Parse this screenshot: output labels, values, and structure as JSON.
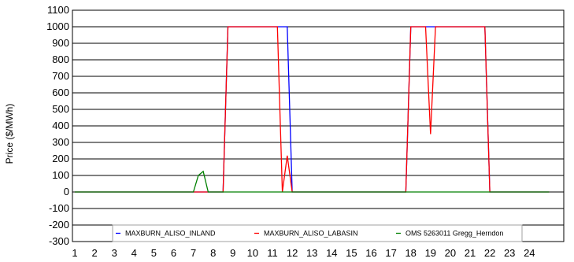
{
  "chart_data": {
    "type": "line",
    "ylabel": "Price ($/MWh)",
    "xlabel": "",
    "ylim": [
      -300,
      1100
    ],
    "yticks": [
      1100,
      1000,
      900,
      800,
      700,
      600,
      500,
      400,
      300,
      200,
      100,
      0,
      -100,
      -200,
      -300
    ],
    "xlim": [
      0.9,
      25
    ],
    "xticks": [
      1,
      2,
      3,
      4,
      5,
      6,
      7,
      8,
      9,
      10,
      11,
      12,
      13,
      14,
      15,
      16,
      17,
      18,
      19,
      20,
      21,
      22,
      23,
      24
    ],
    "grid": "horizontal",
    "legend_position": "bottom-inside",
    "series": [
      {
        "name": "MAXBURN_ALISO_INLAND",
        "color": "#0000ff",
        "points": [
          [
            1,
            0
          ],
          [
            8.5,
            0
          ],
          [
            8.75,
            1000
          ],
          [
            11.5,
            1000
          ],
          [
            11.75,
            1000
          ],
          [
            12,
            0
          ],
          [
            17.75,
            0
          ],
          [
            18,
            1000
          ],
          [
            21.75,
            1000
          ],
          [
            22,
            0
          ],
          [
            25,
            0
          ]
        ]
      },
      {
        "name": "MAXBURN_ALISO_LABASIN",
        "color": "#ff0000",
        "points": [
          [
            1,
            0
          ],
          [
            8.5,
            0
          ],
          [
            8.75,
            1000
          ],
          [
            11.25,
            1000
          ],
          [
            11.5,
            0
          ],
          [
            11.75,
            220
          ],
          [
            12,
            0
          ],
          [
            17.75,
            0
          ],
          [
            18,
            1000
          ],
          [
            18.75,
            1000
          ],
          [
            19,
            350
          ],
          [
            19.25,
            1000
          ],
          [
            21.75,
            1000
          ],
          [
            22,
            0
          ],
          [
            25,
            0
          ]
        ]
      },
      {
        "name": "OMS 5263011 Gregg_Herndon",
        "color": "#008000",
        "points": [
          [
            1,
            0
          ],
          [
            7,
            0
          ],
          [
            7.25,
            100
          ],
          [
            7.5,
            125
          ],
          [
            7.75,
            0
          ],
          [
            25,
            0
          ]
        ]
      }
    ]
  }
}
